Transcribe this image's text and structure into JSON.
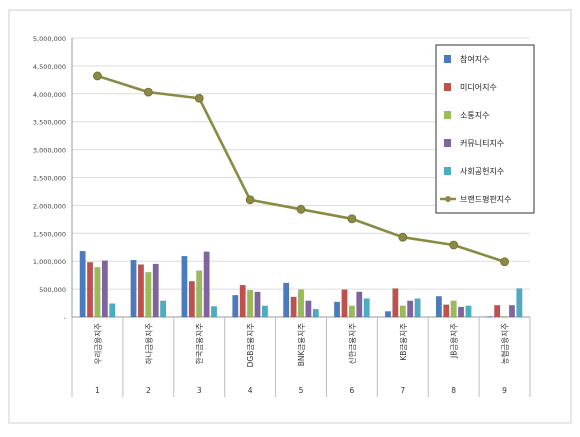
{
  "chart_data": {
    "type": "bar+line",
    "categories": [
      "우리금융지주",
      "하나금융지주",
      "한국금융지주",
      "DGB금융지주",
      "BNK금융지주",
      "신한금융지주",
      "KB금융지주",
      "JB금융지주",
      "농협금융지주"
    ],
    "x_numbers": [
      "1",
      "2",
      "3",
      "4",
      "5",
      "6",
      "7",
      "8",
      "9"
    ],
    "ylim": [
      0,
      5000000
    ],
    "yticks": [
      "-",
      "500,000",
      "1,000,000",
      "1,500,000",
      "2,000,000",
      "2,500,000",
      "3,000,000",
      "3,500,000",
      "4,000,000",
      "4,500,000",
      "5,000,000"
    ],
    "ytick_values": [
      0,
      500000,
      1000000,
      1500000,
      2000000,
      2500000,
      3000000,
      3500000,
      4000000,
      4500000,
      5000000
    ],
    "legend_position": "right",
    "series": [
      {
        "name": "참여지수",
        "type": "bar",
        "color": "#4a7bbf",
        "values": [
          1180000,
          1020000,
          1090000,
          390000,
          610000,
          270000,
          100000,
          370000,
          10000
        ]
      },
      {
        "name": "미디어지수",
        "type": "bar",
        "color": "#c0504d",
        "values": [
          980000,
          940000,
          640000,
          570000,
          360000,
          490000,
          510000,
          220000,
          210000
        ]
      },
      {
        "name": "소통지수",
        "type": "bar",
        "color": "#9bbb59",
        "values": [
          890000,
          800000,
          830000,
          480000,
          490000,
          200000,
          200000,
          290000,
          10000
        ]
      },
      {
        "name": "커뮤니티지수",
        "type": "bar",
        "color": "#8064a2",
        "values": [
          1010000,
          950000,
          1170000,
          450000,
          290000,
          450000,
          290000,
          180000,
          210000
        ]
      },
      {
        "name": "사회공헌지수",
        "type": "bar",
        "color": "#4bacc6",
        "values": [
          240000,
          290000,
          190000,
          200000,
          140000,
          330000,
          330000,
          200000,
          510000
        ]
      },
      {
        "name": "브랜드평판지수",
        "type": "line",
        "color": "#8a8a44",
        "values": [
          4320000,
          4030000,
          3920000,
          2100000,
          1930000,
          1760000,
          1430000,
          1290000,
          990000
        ]
      }
    ]
  }
}
